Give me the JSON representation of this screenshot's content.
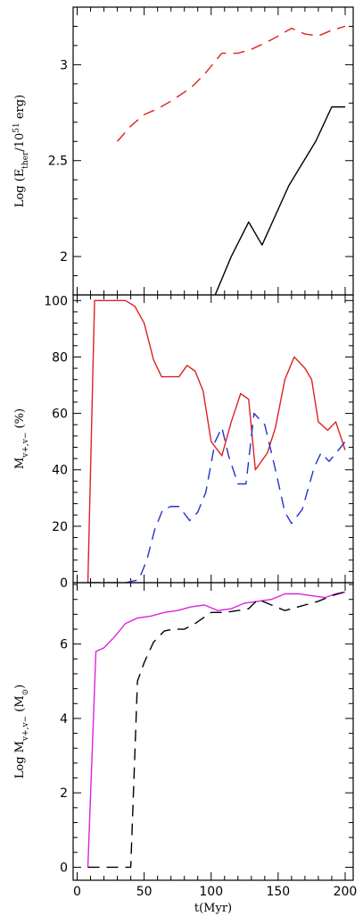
{
  "chart_data": [
    {
      "type": "line",
      "panel": "top",
      "ylabel": "Log (E_ther/10^51 erg)",
      "ylim": [
        1.8,
        3.3
      ],
      "yticks": [
        2,
        2.5,
        3
      ],
      "ytick_labels": [
        "2",
        "2.5",
        "3"
      ],
      "series": [
        {
          "color": "#dd2222",
          "dash": "dashed",
          "points": [
            [
              30,
              2.6
            ],
            [
              40,
              2.68
            ],
            [
              50,
              2.74
            ],
            [
              60,
              2.77
            ],
            [
              70,
              2.81
            ],
            [
              85,
              2.88
            ],
            [
              95,
              2.95
            ],
            [
              108,
              3.06
            ],
            [
              120,
              3.06
            ],
            [
              130,
              3.08
            ],
            [
              145,
              3.13
            ],
            [
              160,
              3.19
            ],
            [
              170,
              3.16
            ],
            [
              180,
              3.15
            ],
            [
              190,
              3.18
            ],
            [
              200,
              3.2
            ]
          ]
        },
        {
          "color": "#000000",
          "dash": "solid",
          "points": [
            [
              103,
              1.8
            ],
            [
              115,
              2.0
            ],
            [
              128,
              2.18
            ],
            [
              138,
              2.06
            ],
            [
              158,
              2.37
            ],
            [
              178,
              2.6
            ],
            [
              190,
              2.78
            ],
            [
              200,
              2.78
            ]
          ]
        }
      ]
    },
    {
      "type": "line",
      "panel": "middle",
      "ylabel": "M_v+,v- (%)",
      "ylim": [
        0,
        102
      ],
      "yticks": [
        0,
        20,
        40,
        60,
        80,
        100
      ],
      "ytick_labels": [
        "0",
        "20",
        "40",
        "60",
        "80",
        "100"
      ],
      "series": [
        {
          "color": "#dd2222",
          "dash": "solid",
          "points": [
            [
              8,
              0
            ],
            [
              13,
              100
            ],
            [
              36,
              100
            ],
            [
              43,
              98
            ],
            [
              50,
              92
            ],
            [
              57,
              79
            ],
            [
              63,
              73
            ],
            [
              68,
              73
            ],
            [
              76,
              73
            ],
            [
              82,
              77
            ],
            [
              88,
              75
            ],
            [
              94,
              68
            ],
            [
              100,
              50
            ],
            [
              108,
              45
            ],
            [
              115,
              57
            ],
            [
              122,
              67
            ],
            [
              128,
              65
            ],
            [
              133,
              40
            ],
            [
              142,
              46
            ],
            [
              148,
              55
            ],
            [
              155,
              72
            ],
            [
              162,
              80
            ],
            [
              170,
              76
            ],
            [
              175,
              72
            ],
            [
              180,
              57
            ],
            [
              187,
              54
            ],
            [
              193,
              57
            ],
            [
              200,
              47
            ]
          ]
        },
        {
          "color": "#2233cc",
          "dash": "dashed",
          "points": [
            [
              8,
              0
            ],
            [
              36,
              0
            ],
            [
              46,
              1
            ],
            [
              52,
              8
            ],
            [
              58,
              19
            ],
            [
              64,
              26
            ],
            [
              70,
              27
            ],
            [
              76,
              27
            ],
            [
              84,
              22
            ],
            [
              90,
              25
            ],
            [
              96,
              32
            ],
            [
              103,
              50
            ],
            [
              108,
              55
            ],
            [
              113,
              45
            ],
            [
              120,
              35
            ],
            [
              126,
              35
            ],
            [
              132,
              60
            ],
            [
              140,
              56
            ],
            [
              148,
              40
            ],
            [
              155,
              25
            ],
            [
              160,
              21
            ],
            [
              168,
              26
            ],
            [
              177,
              41
            ],
            [
              182,
              46
            ],
            [
              188,
              43
            ],
            [
              195,
              47
            ],
            [
              200,
              50
            ]
          ]
        }
      ]
    },
    {
      "type": "line",
      "panel": "bottom",
      "xlabel": "t(Myr)",
      "ylabel": "Log M_v+,v- (M_sun)",
      "xlim": [
        -3,
        206
      ],
      "ylim": [
        -0.35,
        7.65
      ],
      "xticks": [
        0,
        50,
        100,
        150,
        200
      ],
      "xtick_labels": [
        "0",
        "50",
        "100",
        "150",
        "200"
      ],
      "yticks": [
        0,
        2,
        4,
        6
      ],
      "ytick_labels": [
        "0",
        "2",
        "4",
        "6"
      ],
      "series": [
        {
          "color": "#dd22dd",
          "dash": "solid",
          "points": [
            [
              8,
              0
            ],
            [
              14,
              5.8
            ],
            [
              20,
              5.9
            ],
            [
              28,
              6.2
            ],
            [
              36,
              6.55
            ],
            [
              45,
              6.7
            ],
            [
              55,
              6.75
            ],
            [
              65,
              6.85
            ],
            [
              75,
              6.9
            ],
            [
              85,
              7.0
            ],
            [
              95,
              7.05
            ],
            [
              105,
              6.9
            ],
            [
              115,
              6.95
            ],
            [
              125,
              7.1
            ],
            [
              135,
              7.15
            ],
            [
              145,
              7.2
            ],
            [
              155,
              7.35
            ],
            [
              165,
              7.35
            ],
            [
              175,
              7.3
            ],
            [
              185,
              7.25
            ],
            [
              193,
              7.35
            ],
            [
              200,
              7.4
            ]
          ]
        },
        {
          "color": "#000000",
          "dash": "dashed",
          "points": [
            [
              8,
              0
            ],
            [
              40,
              0
            ],
            [
              45,
              5.0
            ],
            [
              50,
              5.5
            ],
            [
              57,
              6.05
            ],
            [
              65,
              6.35
            ],
            [
              72,
              6.4
            ],
            [
              80,
              6.4
            ],
            [
              88,
              6.55
            ],
            [
              100,
              6.85
            ],
            [
              110,
              6.85
            ],
            [
              120,
              6.9
            ],
            [
              128,
              6.95
            ],
            [
              135,
              7.2
            ],
            [
              145,
              7.05
            ],
            [
              155,
              6.9
            ],
            [
              165,
              7.0
            ],
            [
              180,
              7.15
            ],
            [
              190,
              7.3
            ],
            [
              200,
              7.4
            ]
          ]
        }
      ]
    }
  ]
}
